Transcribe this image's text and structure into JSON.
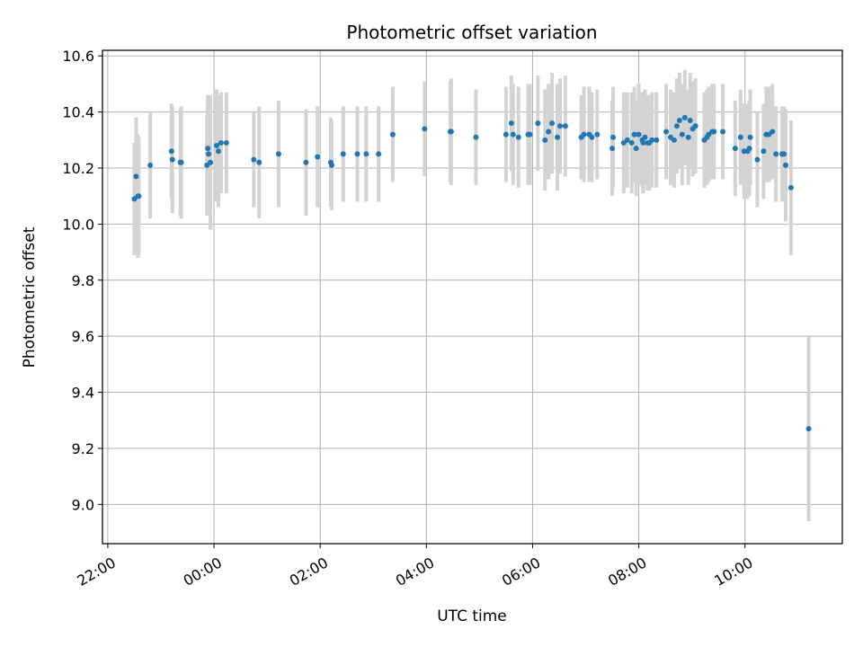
{
  "chart_data": {
    "type": "scatter",
    "title": "Photometric offset variation",
    "xlabel": "UTC time",
    "ylabel": "Photometric offset",
    "x_ticks": [
      "22:00",
      "00:00",
      "02:00",
      "04:00",
      "06:00",
      "08:00",
      "10:00"
    ],
    "y_ticks": [
      "9.0",
      "9.2",
      "9.4",
      "9.6",
      "9.8",
      "10.0",
      "10.2",
      "10.4",
      "10.6"
    ],
    "xlim": [
      "21:54",
      "11:50"
    ],
    "ylim": [
      8.86,
      10.62
    ],
    "grid": true,
    "point_color": "#1f77b4",
    "errorbar_color": "#d3d3d3",
    "points": [
      {
        "t": "22:30",
        "y": 10.09,
        "e": 0.2
      },
      {
        "t": "22:32",
        "y": 10.17,
        "e": 0.21
      },
      {
        "t": "22:34",
        "y": 10.1,
        "e": 0.22
      },
      {
        "t": "22:35",
        "y": 10.1,
        "e": 0.21
      },
      {
        "t": "22:48",
        "y": 10.21,
        "e": 0.19
      },
      {
        "t": "23:12",
        "y": 10.26,
        "e": 0.17
      },
      {
        "t": "23:13",
        "y": 10.23,
        "e": 0.19
      },
      {
        "t": "23:22",
        "y": 10.22,
        "e": 0.19
      },
      {
        "t": "23:23",
        "y": 10.22,
        "e": 0.2
      },
      {
        "t": "23:52",
        "y": 10.21,
        "e": 0.18
      },
      {
        "t": "23:53",
        "y": 10.27,
        "e": 0.19
      },
      {
        "t": "23:54",
        "y": 10.25,
        "e": 0.21
      },
      {
        "t": "23:56",
        "y": 10.22,
        "e": 0.24
      },
      {
        "t": "00:03",
        "y": 10.28,
        "e": 0.2
      },
      {
        "t": "00:05",
        "y": 10.26,
        "e": 0.2
      },
      {
        "t": "00:08",
        "y": 10.29,
        "e": 0.18
      },
      {
        "t": "00:14",
        "y": 10.29,
        "e": 0.18
      },
      {
        "t": "00:45",
        "y": 10.23,
        "e": 0.17
      },
      {
        "t": "00:51",
        "y": 10.22,
        "e": 0.2
      },
      {
        "t": "01:13",
        "y": 10.25,
        "e": 0.19
      },
      {
        "t": "01:44",
        "y": 10.22,
        "e": 0.19
      },
      {
        "t": "01:57",
        "y": 10.24,
        "e": 0.18
      },
      {
        "t": "02:12",
        "y": 10.22,
        "e": 0.16
      },
      {
        "t": "02:13",
        "y": 10.21,
        "e": 0.16
      },
      {
        "t": "02:26",
        "y": 10.25,
        "e": 0.17
      },
      {
        "t": "02:42",
        "y": 10.25,
        "e": 0.17
      },
      {
        "t": "02:52",
        "y": 10.25,
        "e": 0.17
      },
      {
        "t": "03:06",
        "y": 10.25,
        "e": 0.17
      },
      {
        "t": "03:22",
        "y": 10.32,
        "e": 0.17
      },
      {
        "t": "03:58",
        "y": 10.34,
        "e": 0.17
      },
      {
        "t": "04:27",
        "y": 10.33,
        "e": 0.18
      },
      {
        "t": "04:28",
        "y": 10.33,
        "e": 0.19
      },
      {
        "t": "04:56",
        "y": 10.31,
        "e": 0.17
      },
      {
        "t": "05:30",
        "y": 10.32,
        "e": 0.17
      },
      {
        "t": "05:36",
        "y": 10.36,
        "e": 0.17
      },
      {
        "t": "05:38",
        "y": 10.32,
        "e": 0.18
      },
      {
        "t": "05:44",
        "y": 10.31,
        "e": 0.18
      },
      {
        "t": "05:55",
        "y": 10.32,
        "e": 0.18
      },
      {
        "t": "05:57",
        "y": 10.32,
        "e": 0.18
      },
      {
        "t": "06:06",
        "y": 10.36,
        "e": 0.17
      },
      {
        "t": "06:14",
        "y": 10.3,
        "e": 0.18
      },
      {
        "t": "06:18",
        "y": 10.33,
        "e": 0.17
      },
      {
        "t": "06:22",
        "y": 10.36,
        "e": 0.18
      },
      {
        "t": "06:28",
        "y": 10.31,
        "e": 0.19
      },
      {
        "t": "06:31",
        "y": 10.35,
        "e": 0.17
      },
      {
        "t": "06:37",
        "y": 10.35,
        "e": 0.18
      },
      {
        "t": "06:55",
        "y": 10.31,
        "e": 0.15
      },
      {
        "t": "06:58",
        "y": 10.32,
        "e": 0.17
      },
      {
        "t": "07:04",
        "y": 10.32,
        "e": 0.17
      },
      {
        "t": "07:07",
        "y": 10.31,
        "e": 0.16
      },
      {
        "t": "07:13",
        "y": 10.32,
        "e": 0.16
      },
      {
        "t": "07:30",
        "y": 10.27,
        "e": 0.17
      },
      {
        "t": "07:31",
        "y": 10.31,
        "e": 0.18
      },
      {
        "t": "07:43",
        "y": 10.29,
        "e": 0.18
      },
      {
        "t": "07:47",
        "y": 10.3,
        "e": 0.17
      },
      {
        "t": "07:52",
        "y": 10.29,
        "e": 0.18
      },
      {
        "t": "07:55",
        "y": 10.32,
        "e": 0.17
      },
      {
        "t": "07:57",
        "y": 10.27,
        "e": 0.17
      },
      {
        "t": "08:00",
        "y": 10.32,
        "e": 0.18
      },
      {
        "t": "08:04",
        "y": 10.3,
        "e": 0.17
      },
      {
        "t": "08:05",
        "y": 10.29,
        "e": 0.18
      },
      {
        "t": "08:07",
        "y": 10.31,
        "e": 0.17
      },
      {
        "t": "08:10",
        "y": 10.29,
        "e": 0.17
      },
      {
        "t": "08:12",
        "y": 10.29,
        "e": 0.17
      },
      {
        "t": "08:15",
        "y": 10.3,
        "e": 0.17
      },
      {
        "t": "08:20",
        "y": 10.3,
        "e": 0.17
      },
      {
        "t": "08:31",
        "y": 10.33,
        "e": 0.17
      },
      {
        "t": "08:36",
        "y": 10.31,
        "e": 0.17
      },
      {
        "t": "08:40",
        "y": 10.3,
        "e": 0.17
      },
      {
        "t": "08:43",
        "y": 10.35,
        "e": 0.17
      },
      {
        "t": "08:46",
        "y": 10.37,
        "e": 0.17
      },
      {
        "t": "08:49",
        "y": 10.32,
        "e": 0.18
      },
      {
        "t": "08:52",
        "y": 10.38,
        "e": 0.17
      },
      {
        "t": "08:56",
        "y": 10.31,
        "e": 0.17
      },
      {
        "t": "08:58",
        "y": 10.37,
        "e": 0.17
      },
      {
        "t": "09:01",
        "y": 10.34,
        "e": 0.17
      },
      {
        "t": "09:04",
        "y": 10.35,
        "e": 0.17
      },
      {
        "t": "09:14",
        "y": 10.3,
        "e": 0.17
      },
      {
        "t": "09:17",
        "y": 10.31,
        "e": 0.17
      },
      {
        "t": "09:19",
        "y": 10.32,
        "e": 0.17
      },
      {
        "t": "09:23",
        "y": 10.33,
        "e": 0.17
      },
      {
        "t": "09:25",
        "y": 10.33,
        "e": 0.17
      },
      {
        "t": "09:35",
        "y": 10.33,
        "e": 0.17
      },
      {
        "t": "09:49",
        "y": 10.27,
        "e": 0.17
      },
      {
        "t": "09:55",
        "y": 10.31,
        "e": 0.17
      },
      {
        "t": "09:59",
        "y": 10.26,
        "e": 0.17
      },
      {
        "t": "10:03",
        "y": 10.26,
        "e": 0.17
      },
      {
        "t": "10:05",
        "y": 10.27,
        "e": 0.17
      },
      {
        "t": "10:06",
        "y": 10.31,
        "e": 0.17
      },
      {
        "t": "10:14",
        "y": 10.23,
        "e": 0.17
      },
      {
        "t": "10:21",
        "y": 10.26,
        "e": 0.17
      },
      {
        "t": "10:24",
        "y": 10.32,
        "e": 0.17
      },
      {
        "t": "10:27",
        "y": 10.32,
        "e": 0.17
      },
      {
        "t": "10:31",
        "y": 10.33,
        "e": 0.17
      },
      {
        "t": "10:35",
        "y": 10.25,
        "e": 0.17
      },
      {
        "t": "10:42",
        "y": 10.25,
        "e": 0.17
      },
      {
        "t": "10:44",
        "y": 10.25,
        "e": 0.17
      },
      {
        "t": "10:46",
        "y": 10.21,
        "e": 0.2
      },
      {
        "t": "10:52",
        "y": 10.13,
        "e": 0.24
      },
      {
        "t": "11:12",
        "y": 9.27,
        "e": 0.33
      }
    ]
  }
}
